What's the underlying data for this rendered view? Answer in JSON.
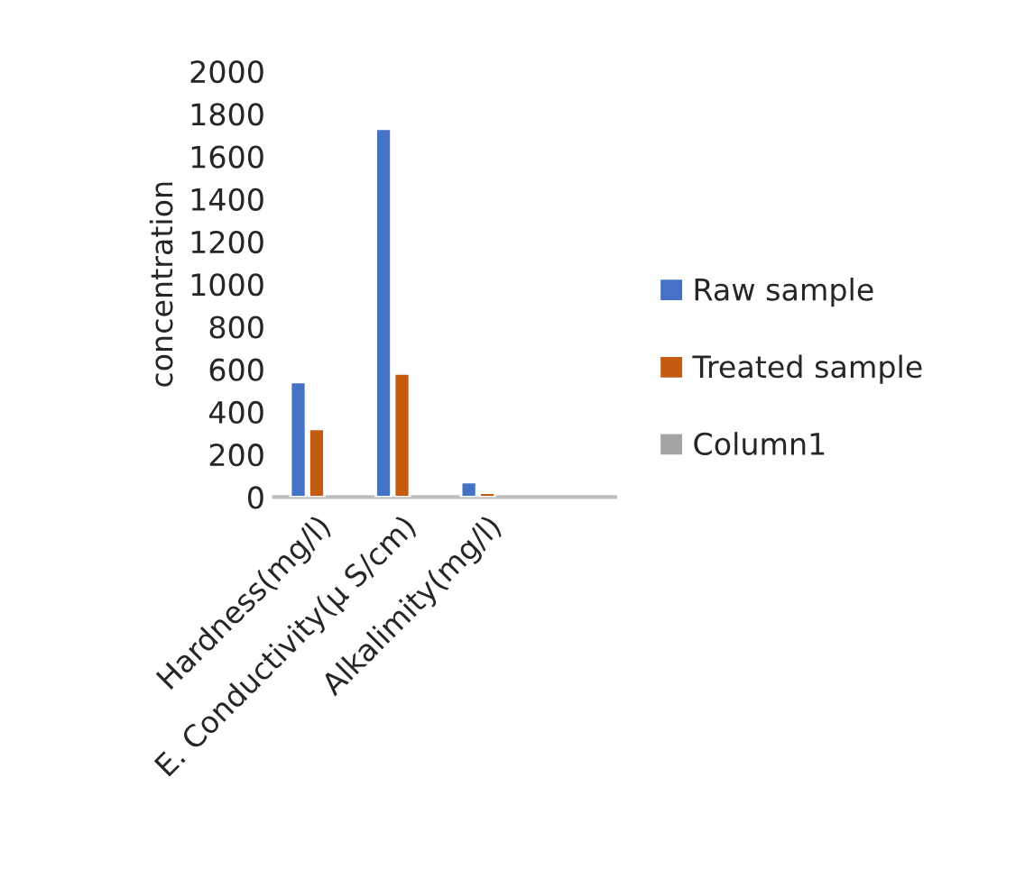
{
  "chart_data": {
    "type": "bar",
    "ylabel": "concentration",
    "categories": [
      "Hardness(mg/l)",
      "E. Conductivity(µ S/cm)",
      "Alkalimity(mg/l)",
      null
    ],
    "series": [
      {
        "name": "Raw sample",
        "color": "#4472c4",
        "values": [
          540,
          1730,
          70,
          null
        ]
      },
      {
        "name": "Treated sample",
        "color": "#c55a11",
        "values": [
          320,
          580,
          20,
          null
        ]
      },
      {
        "name": "Column1",
        "color": "#a5a5a5",
        "values": [
          null,
          null,
          null,
          null
        ]
      }
    ],
    "ylim": [
      0,
      2000
    ],
    "yticks": [
      0,
      200,
      400,
      600,
      800,
      1000,
      1200,
      1400,
      1600,
      1800,
      2000
    ],
    "grid": false,
    "legend": "right"
  }
}
